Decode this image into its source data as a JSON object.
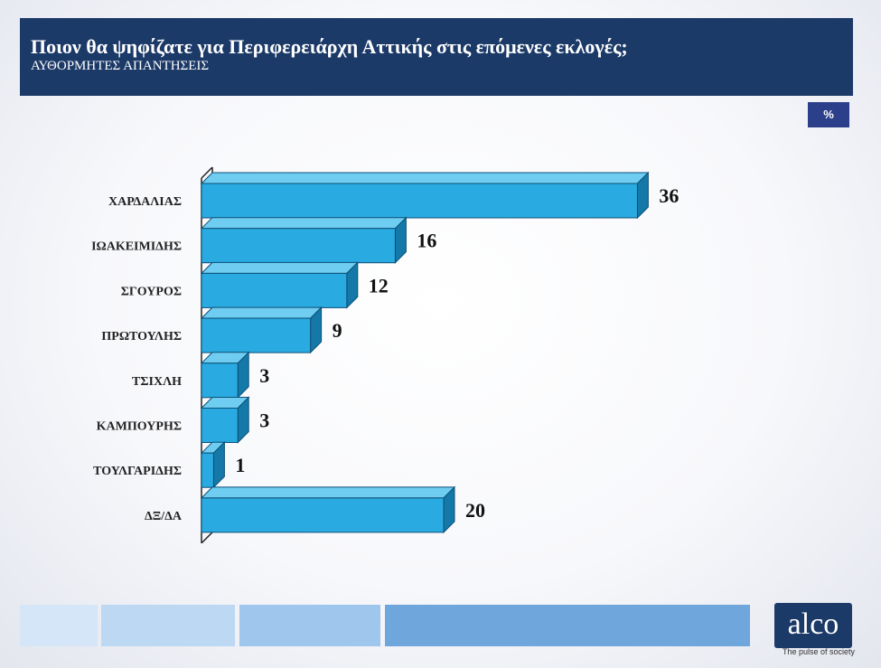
{
  "header": {
    "title": "Ποιον θα ψηφίζατε για Περιφερειάρχη Αττικής στις επόμενες εκλογές;",
    "subtitle": "ΑΥΘΟΡΜΗΤΕΣ ΑΠΑΝΤΗΣΕΙΣ"
  },
  "unit_badge": "%",
  "chart_data": {
    "type": "bar",
    "orientation": "horizontal",
    "title": "Ποιον θα ψηφίζατε για Περιφερειάρχη Αττικής στις επόμενες εκλογές;",
    "subtitle": "ΑΥΘΟΡΜΗΤΕΣ ΑΠΑΝΤΗΣΕΙΣ",
    "unit": "%",
    "categories": [
      "ΧΑΡΔΑΛΙΑΣ",
      "ΙΩΑΚΕΙΜΙΔΗΣ",
      "ΣΓΟΥΡΟΣ",
      "ΠΡΩΤΟΥΛΗΣ",
      "ΤΣΙΧΛΗ",
      "ΚΑΜΠΟΥΡΗΣ",
      "ΤΟΥΛΓΑΡΙΔΗΣ",
      "ΔΞ/ΔΑ"
    ],
    "values": [
      36,
      16,
      12,
      9,
      3,
      3,
      1,
      20
    ],
    "xlim": [
      0,
      40
    ],
    "grid": false,
    "legend": "none",
    "colors": {
      "bar_front": "#29abe2",
      "bar_top": "#6fcdf2",
      "bar_side": "#1479a8",
      "bar_edge": "#0d4f77"
    }
  },
  "footer": {
    "logo": "alco",
    "tagline": "The pulse of society",
    "colors": [
      "#d4e6f7",
      "#bcd8f3",
      "#9fc6ec",
      "#6fa6dc"
    ]
  }
}
